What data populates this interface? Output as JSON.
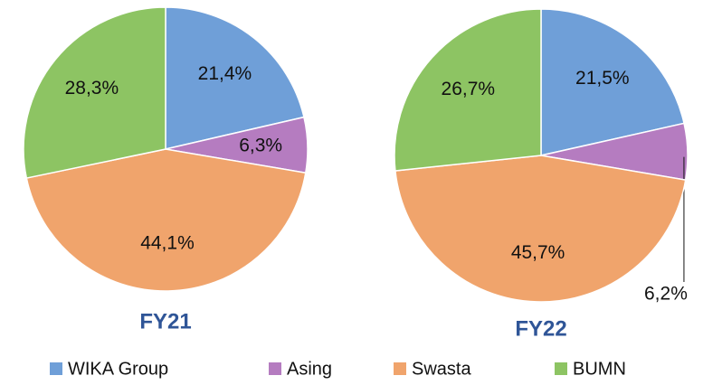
{
  "chart_data": [
    {
      "type": "pie",
      "title": "FY21",
      "categories": [
        "WIKA Group",
        "Asing",
        "Swasta",
        "BUMN"
      ],
      "values": [
        21.4,
        6.3,
        44.1,
        28.3
      ],
      "value_labels": [
        "21,4%",
        "6,3%",
        "44,1%",
        "28,3%"
      ],
      "colors": [
        "#6f9fd8",
        "#b57cc0",
        "#f0a46c",
        "#8dc463"
      ]
    },
    {
      "type": "pie",
      "title": "FY22",
      "categories": [
        "WIKA Group",
        "Asing",
        "Swasta",
        "BUMN"
      ],
      "values": [
        21.5,
        6.2,
        45.7,
        26.7
      ],
      "value_labels": [
        "21,5%",
        "6,2%",
        "45,7%",
        "26,7%"
      ],
      "colors": [
        "#6f9fd8",
        "#b57cc0",
        "#f0a46c",
        "#8dc463"
      ]
    }
  ]
}
